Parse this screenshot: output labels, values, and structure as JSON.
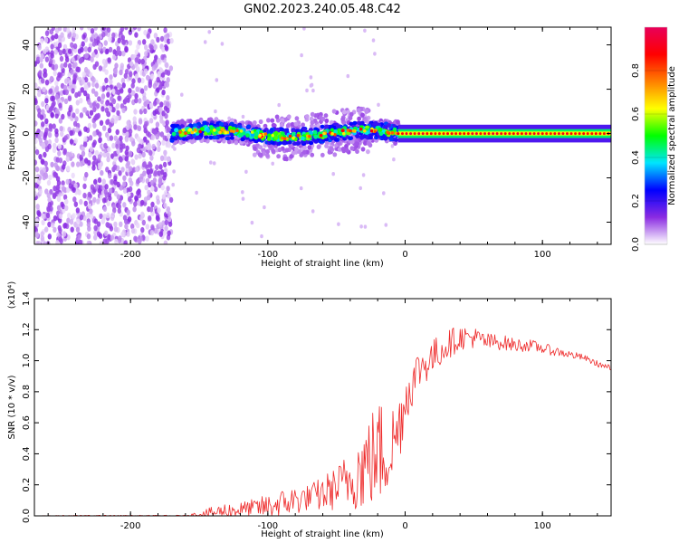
{
  "title": "GN02.2023.240.05.48.C42",
  "chart_data": [
    {
      "type": "heatmap",
      "xlabel": "Height of straight line (km)",
      "ylabel": "Frequency (Hz)",
      "xlim": [
        -270,
        150
      ],
      "ylim": [
        -50,
        48
      ],
      "xticks": [
        "-200",
        "-100",
        "0",
        "100"
      ],
      "xtick_values": [
        -200,
        -100,
        0,
        100
      ],
      "yticks": [
        "-40",
        "-20",
        "0",
        "20",
        "40"
      ],
      "ytick_values": [
        -40,
        -20,
        0,
        20,
        40
      ],
      "grid": false,
      "colorbar": {
        "label": "Normalized spectral amplitude",
        "range": [
          0,
          1
        ],
        "ticks": [
          "0.0",
          "0.2",
          "0.4",
          "0.6",
          "0.8"
        ],
        "tick_values": [
          0,
          0.2,
          0.4,
          0.6,
          0.8
        ],
        "colors": [
          "#ffffff",
          "#8a2be2",
          "#0000ff",
          "#00e5ff",
          "#00ff00",
          "#ffff00",
          "#ff7f00",
          "#ff0000",
          "#e8005a"
        ]
      },
      "regions": [
        {
          "x": [
            -270,
            -170
          ],
          "y": [
            -50,
            48
          ],
          "level": 0.1,
          "description": "noise"
        },
        {
          "x": [
            -170,
            -5
          ],
          "y": [
            -4,
            4
          ],
          "level": 0.4
        },
        {
          "x": [
            -5,
            150
          ],
          "y": [
            -2,
            2
          ],
          "level": 0.85
        }
      ]
    },
    {
      "type": "line",
      "xlabel": "Height of straight line (km)",
      "ylabel": "SNR (10 * v/v)",
      "y_multiplier": "(x10⁴)",
      "xlim": [
        -270,
        150
      ],
      "ylim": [
        0,
        1.4
      ],
      "xticks": [
        "-200",
        "-100",
        "0",
        "100"
      ],
      "xtick_values": [
        -200,
        -100,
        0,
        100
      ],
      "yticks": [
        "0.0",
        "0.2",
        "0.4",
        "0.6",
        "0.8",
        "1.0",
        "1.2",
        "1.4"
      ],
      "ytick_values": [
        0,
        0.2,
        0.4,
        0.6,
        0.8,
        1.0,
        1.2,
        1.4
      ],
      "grid": false,
      "series": [
        {
          "color": "#ee2a2a",
          "x": [
            -270,
            -250,
            -230,
            -210,
            -190,
            -170,
            -160,
            -150,
            -140,
            -130,
            -120,
            -110,
            -100,
            -90,
            -80,
            -70,
            -60,
            -50,
            -40,
            -30,
            -20,
            -15,
            -10,
            -5,
            0,
            5,
            10,
            20,
            30,
            40,
            50,
            60,
            70,
            80,
            90,
            100,
            110,
            120,
            130,
            140,
            150
          ],
          "y": [
            0.0,
            0.0,
            0.0,
            0.0,
            0.0,
            0.0,
            0.0,
            0.01,
            0.02,
            0.03,
            0.04,
            0.05,
            0.06,
            0.08,
            0.1,
            0.12,
            0.14,
            0.18,
            0.24,
            0.32,
            0.4,
            0.42,
            0.45,
            0.55,
            0.75,
            0.85,
            0.95,
            1.02,
            1.1,
            1.15,
            1.15,
            1.12,
            1.12,
            1.1,
            1.1,
            1.08,
            1.06,
            1.04,
            1.02,
            0.98,
            0.95
          ],
          "noise": [
            0,
            0.004,
            0.004,
            0.004,
            0.004,
            0.004,
            0.005,
            0.02,
            0.04,
            0.06,
            0.05,
            0.06,
            0.08,
            0.09,
            0.1,
            0.08,
            0.12,
            0.14,
            0.2,
            0.3,
            0.35,
            0.35,
            0.28,
            0.25,
            0.18,
            0.15,
            0.14,
            0.12,
            0.1,
            0.08,
            0.07,
            0.06,
            0.05,
            0.045,
            0.04,
            0.035,
            0.03,
            0.025,
            0.02,
            0.02,
            0.02
          ]
        }
      ]
    }
  ]
}
